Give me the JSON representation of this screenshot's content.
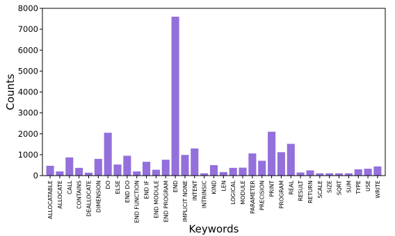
{
  "chart_data": {
    "type": "bar",
    "title": "",
    "xlabel": "Keywords",
    "ylabel": "Counts",
    "ylim": [
      0,
      8000
    ],
    "yticks": [
      0,
      1000,
      2000,
      3000,
      4000,
      5000,
      6000,
      7000,
      8000
    ],
    "grid": false,
    "bar_color": "#9370DB",
    "categories": [
      "ALLOCATABLE",
      "ALLOCATE",
      "CALL",
      "CONTAINS",
      "DEALLOCATE",
      "DIMENSION",
      "DO",
      "ELSE",
      "END DO",
      "END FUNCTION",
      "END IF",
      "END MODULE",
      "END PROGRAM",
      "END",
      "IMPLICIT NONE",
      "INTENT",
      "INTRINSIC",
      "KIND",
      "LEN",
      "LOGICAL",
      "MODULE",
      "PARAMETER",
      "PRECISION",
      "PRINT",
      "PROGRAM",
      "REAL",
      "RESULT",
      "RETURN",
      "SCALE",
      "SIZE",
      "SQRT",
      "SUM",
      "TYPE",
      "USE",
      "WRITE"
    ],
    "values": [
      470,
      200,
      870,
      370,
      140,
      800,
      2050,
      530,
      950,
      200,
      660,
      280,
      760,
      7600,
      990,
      1300,
      110,
      500,
      170,
      370,
      380,
      1060,
      710,
      2100,
      1120,
      1520,
      150,
      250,
      110,
      110,
      110,
      110,
      300,
      330,
      440
    ]
  }
}
